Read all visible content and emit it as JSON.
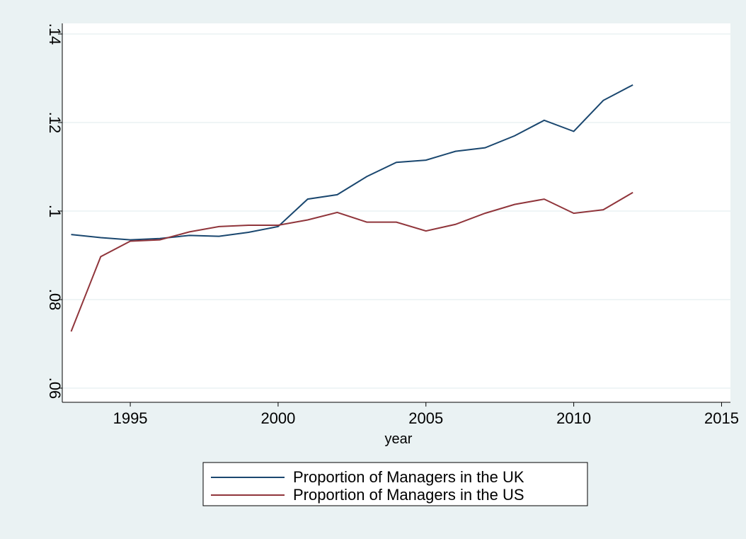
{
  "chart_data": {
    "type": "line",
    "x_label": "year",
    "x": [
      1993,
      1994,
      1995,
      1996,
      1997,
      1998,
      1999,
      2000,
      2001,
      2002,
      2003,
      2004,
      2005,
      2006,
      2007,
      2008,
      2009,
      2010,
      2011,
      2012
    ],
    "series": [
      {
        "name": "Proportion of Managers in the UK",
        "color": "#1a476f",
        "values": [
          0.0947,
          0.094,
          0.0935,
          0.0938,
          0.0945,
          0.0943,
          0.0952,
          0.0965,
          0.1027,
          0.1037,
          0.1078,
          0.111,
          0.1115,
          0.1135,
          0.1143,
          0.117,
          0.1205,
          0.118,
          0.125,
          0.1285
        ]
      },
      {
        "name": "Proportion of Managers in the US",
        "color": "#90353b",
        "values": [
          0.0728,
          0.0897,
          0.0932,
          0.0935,
          0.0953,
          0.0965,
          0.0968,
          0.0968,
          0.098,
          0.0997,
          0.0975,
          0.0975,
          0.0955,
          0.097,
          0.0995,
          0.1015,
          0.1027,
          0.0995,
          0.1003,
          0.1042
        ]
      }
    ],
    "xlim": [
      1992.7,
      2015.3
    ],
    "xticks": [
      1995,
      2000,
      2005,
      2010,
      2015
    ],
    "ylim": [
      0.0568,
      0.1424
    ],
    "yticks": [
      {
        "value": 0.06,
        "label": ".06"
      },
      {
        "value": 0.08,
        "label": ".08"
      },
      {
        "value": 0.1,
        "label": ".1"
      },
      {
        "value": 0.12,
        "label": ".12"
      },
      {
        "value": 0.14,
        "label": ".14"
      }
    ],
    "grid": true,
    "legend": "bottom"
  }
}
